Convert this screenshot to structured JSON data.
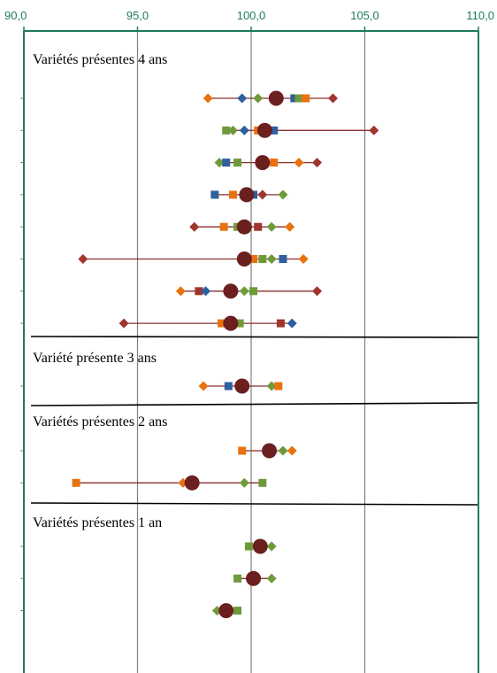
{
  "chart_data": {
    "type": "scatter",
    "title": "",
    "xlabel": "",
    "ylabel": "",
    "xlim": [
      90,
      110
    ],
    "x_ticks": [
      "90,0",
      "95,0",
      "100,0",
      "105,0",
      "110,0"
    ],
    "x_tick_values": [
      90,
      95,
      100,
      105,
      110
    ],
    "vertical_grid": true,
    "colors": {
      "frame": "#1f7a5c",
      "tick_text": "#1f7a5c",
      "grid": "#7f7f7f",
      "mean": "#6b1f1f",
      "range_line": "#8b2f2f",
      "red": "#a0352f",
      "orange": "#e8720f",
      "blue": "#2e5f9e",
      "green": "#6f9a3b"
    },
    "groups": [
      {
        "label": "Variétés présentes 4 ans",
        "rows": [
          {
            "mean": 101.1,
            "range": [
              98.1,
              103.6
            ],
            "points": [
              {
                "x": 98.1,
                "color": "orange",
                "shape": "diamond"
              },
              {
                "x": 99.6,
                "color": "blue",
                "shape": "diamond"
              },
              {
                "x": 100.3,
                "color": "green",
                "shape": "diamond"
              },
              {
                "x": 101.9,
                "color": "blue",
                "shape": "square"
              },
              {
                "x": 102.1,
                "color": "green",
                "shape": "square"
              },
              {
                "x": 102.4,
                "color": "orange",
                "shape": "square"
              },
              {
                "x": 103.6,
                "color": "red",
                "shape": "diamond"
              }
            ]
          },
          {
            "mean": 100.6,
            "range": [
              98.9,
              105.4
            ],
            "points": [
              {
                "x": 98.9,
                "color": "green",
                "shape": "square"
              },
              {
                "x": 99.2,
                "color": "green",
                "shape": "diamond"
              },
              {
                "x": 99.7,
                "color": "blue",
                "shape": "diamond"
              },
              {
                "x": 100.3,
                "color": "orange",
                "shape": "square"
              },
              {
                "x": 101.0,
                "color": "blue",
                "shape": "square"
              },
              {
                "x": 105.4,
                "color": "red",
                "shape": "diamond"
              }
            ]
          },
          {
            "mean": 100.5,
            "range": [
              98.6,
              102.9
            ],
            "points": [
              {
                "x": 98.6,
                "color": "green",
                "shape": "diamond"
              },
              {
                "x": 98.9,
                "color": "blue",
                "shape": "square"
              },
              {
                "x": 99.4,
                "color": "green",
                "shape": "square"
              },
              {
                "x": 101.0,
                "color": "orange",
                "shape": "square"
              },
              {
                "x": 102.1,
                "color": "orange",
                "shape": "diamond"
              },
              {
                "x": 102.9,
                "color": "red",
                "shape": "diamond"
              }
            ]
          },
          {
            "mean": 99.8,
            "range": [
              98.4,
              101.4
            ],
            "points": [
              {
                "x": 98.4,
                "color": "blue",
                "shape": "square"
              },
              {
                "x": 99.2,
                "color": "orange",
                "shape": "square"
              },
              {
                "x": 100.1,
                "color": "blue",
                "shape": "square"
              },
              {
                "x": 100.5,
                "color": "red",
                "shape": "diamond"
              },
              {
                "x": 101.4,
                "color": "green",
                "shape": "diamond"
              }
            ]
          },
          {
            "mean": 99.7,
            "range": [
              97.5,
              101.7
            ],
            "points": [
              {
                "x": 97.5,
                "color": "red",
                "shape": "diamond"
              },
              {
                "x": 98.8,
                "color": "orange",
                "shape": "square"
              },
              {
                "x": 99.4,
                "color": "green",
                "shape": "square"
              },
              {
                "x": 100.3,
                "color": "red",
                "shape": "square"
              },
              {
                "x": 100.9,
                "color": "green",
                "shape": "diamond"
              },
              {
                "x": 101.7,
                "color": "orange",
                "shape": "diamond"
              }
            ]
          },
          {
            "mean": 99.7,
            "range": [
              92.6,
              102.3
            ],
            "points": [
              {
                "x": 92.6,
                "color": "red",
                "shape": "diamond"
              },
              {
                "x": 100.1,
                "color": "orange",
                "shape": "square"
              },
              {
                "x": 100.5,
                "color": "green",
                "shape": "square"
              },
              {
                "x": 100.9,
                "color": "green",
                "shape": "diamond"
              },
              {
                "x": 101.4,
                "color": "blue",
                "shape": "square"
              },
              {
                "x": 102.3,
                "color": "orange",
                "shape": "diamond"
              }
            ]
          },
          {
            "mean": 99.1,
            "range": [
              96.9,
              102.9
            ],
            "points": [
              {
                "x": 96.9,
                "color": "orange",
                "shape": "diamond"
              },
              {
                "x": 97.7,
                "color": "red",
                "shape": "square"
              },
              {
                "x": 98.0,
                "color": "blue",
                "shape": "diamond"
              },
              {
                "x": 99.7,
                "color": "green",
                "shape": "diamond"
              },
              {
                "x": 100.1,
                "color": "green",
                "shape": "square"
              },
              {
                "x": 102.9,
                "color": "red",
                "shape": "diamond"
              }
            ]
          },
          {
            "mean": 99.1,
            "range": [
              94.4,
              101.8
            ],
            "points": [
              {
                "x": 94.4,
                "color": "red",
                "shape": "diamond"
              },
              {
                "x": 98.7,
                "color": "orange",
                "shape": "square"
              },
              {
                "x": 99.5,
                "color": "green",
                "shape": "square"
              },
              {
                "x": 101.3,
                "color": "red",
                "shape": "square"
              },
              {
                "x": 101.8,
                "color": "blue",
                "shape": "diamond"
              }
            ]
          }
        ]
      },
      {
        "label": "Variété présente 3 ans",
        "rows": [
          {
            "mean": 99.6,
            "range": [
              97.9,
              101.2
            ],
            "points": [
              {
                "x": 97.9,
                "color": "orange",
                "shape": "diamond"
              },
              {
                "x": 99.0,
                "color": "blue",
                "shape": "square"
              },
              {
                "x": 100.9,
                "color": "green",
                "shape": "diamond"
              },
              {
                "x": 101.2,
                "color": "orange",
                "shape": "square"
              }
            ]
          }
        ]
      },
      {
        "label": "Variétés présentes 2 ans",
        "rows": [
          {
            "mean": 100.8,
            "range": [
              99.6,
              101.8
            ],
            "points": [
              {
                "x": 99.6,
                "color": "orange",
                "shape": "square"
              },
              {
                "x": 101.4,
                "color": "green",
                "shape": "diamond"
              },
              {
                "x": 101.8,
                "color": "orange",
                "shape": "diamond"
              }
            ]
          },
          {
            "mean": 97.4,
            "range": [
              92.3,
              100.5
            ],
            "points": [
              {
                "x": 92.3,
                "color": "orange",
                "shape": "square"
              },
              {
                "x": 97.0,
                "color": "orange",
                "shape": "diamond"
              },
              {
                "x": 99.7,
                "color": "green",
                "shape": "diamond"
              },
              {
                "x": 100.5,
                "color": "green",
                "shape": "square"
              }
            ]
          }
        ]
      },
      {
        "label": "Variétés présentes 1 an",
        "rows": [
          {
            "mean": 100.4,
            "range": [
              99.9,
              100.9
            ],
            "points": [
              {
                "x": 99.9,
                "color": "green",
                "shape": "square"
              },
              {
                "x": 100.9,
                "color": "green",
                "shape": "diamond"
              }
            ]
          },
          {
            "mean": 100.1,
            "range": [
              99.4,
              100.9
            ],
            "points": [
              {
                "x": 99.4,
                "color": "green",
                "shape": "square"
              },
              {
                "x": 100.9,
                "color": "green",
                "shape": "diamond"
              }
            ]
          },
          {
            "mean": 98.9,
            "range": [
              98.5,
              99.4
            ],
            "points": [
              {
                "x": 98.5,
                "color": "green",
                "shape": "diamond"
              },
              {
                "x": 99.4,
                "color": "green",
                "shape": "square"
              }
            ]
          }
        ]
      }
    ]
  }
}
